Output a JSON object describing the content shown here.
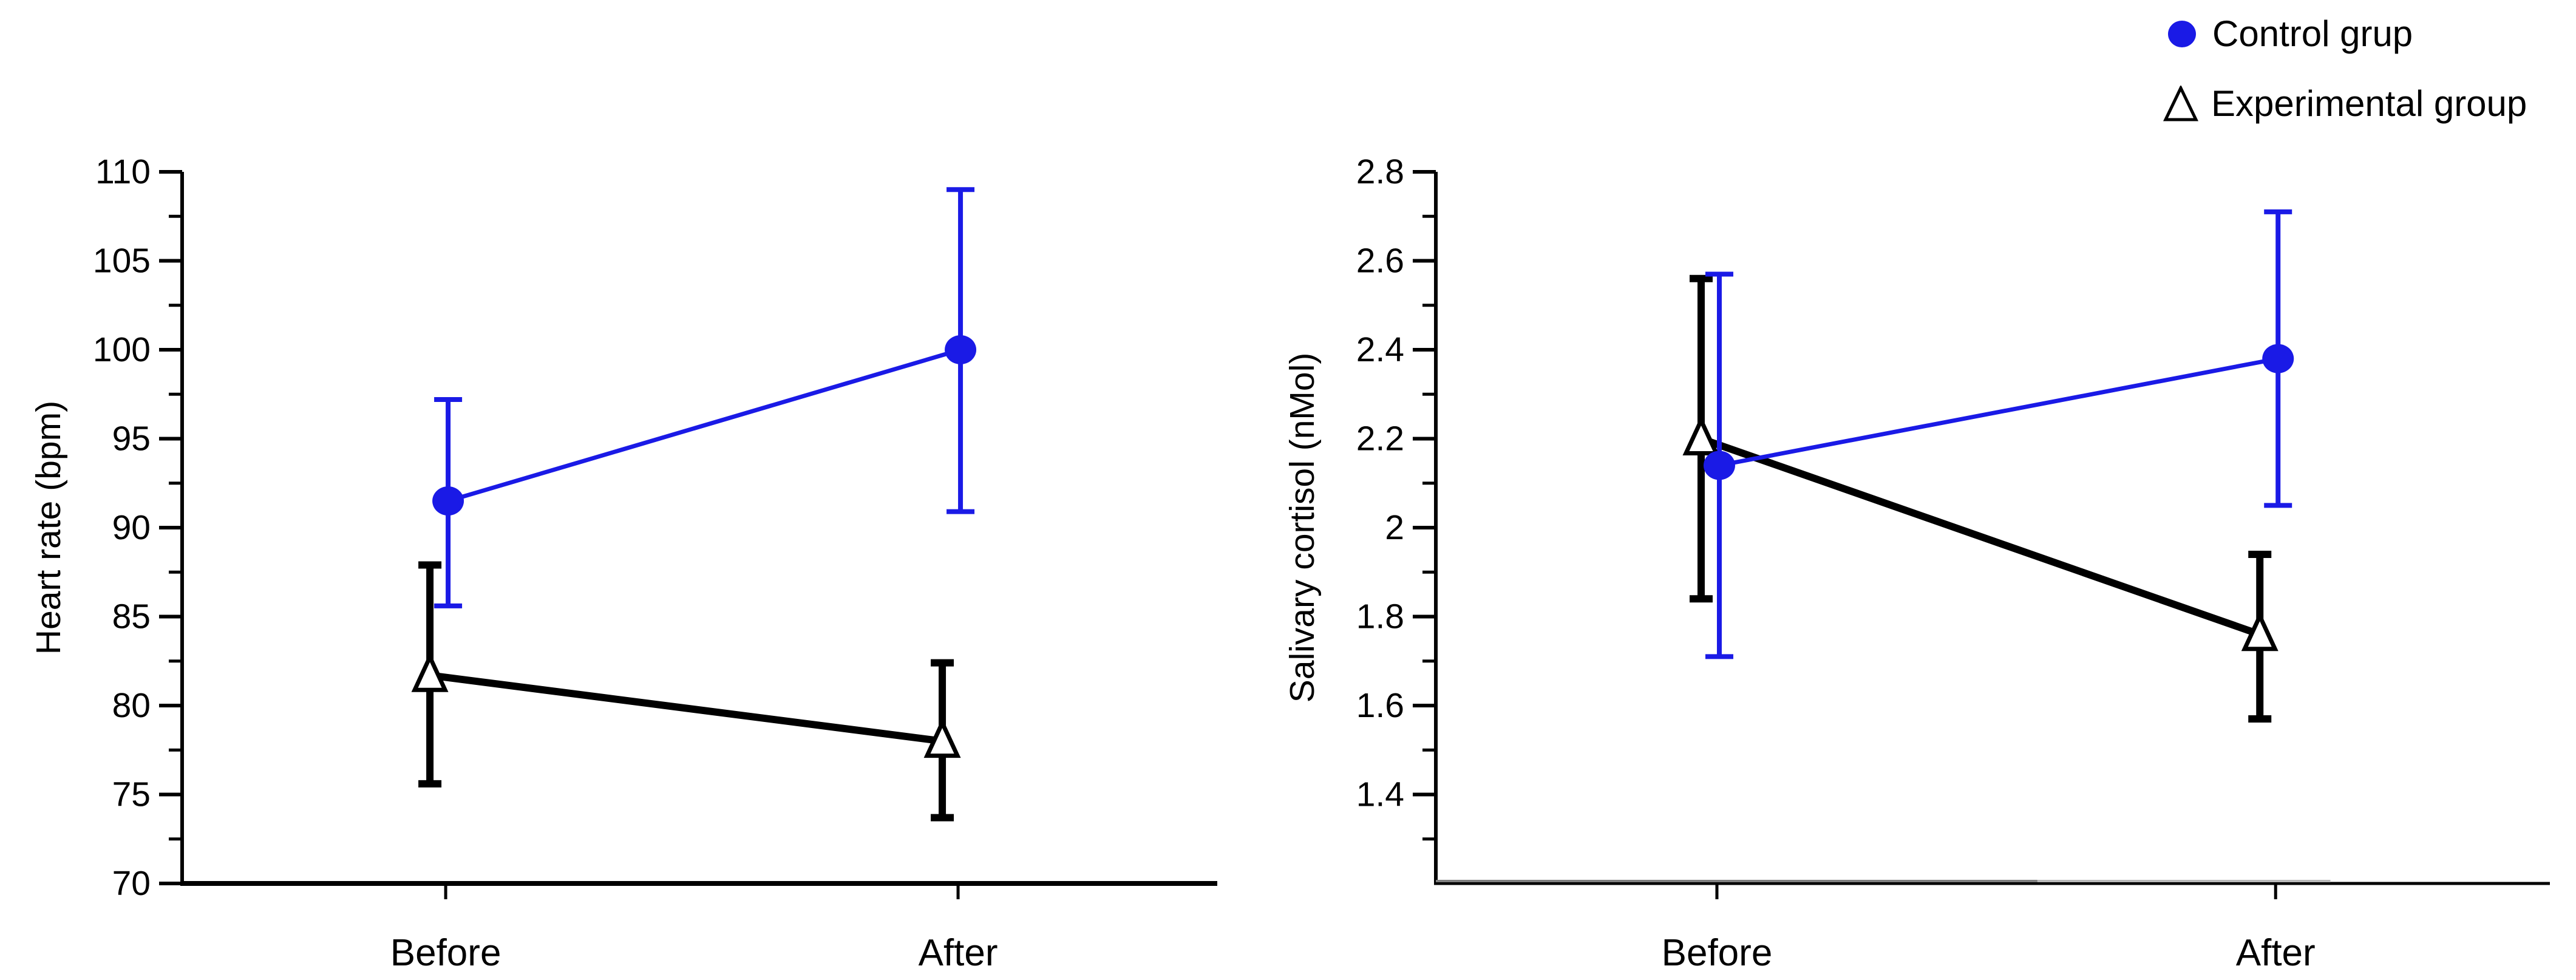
{
  "figure": {
    "background": "#ffffff",
    "accent_blue": "#1a1ae6",
    "axis_black": "#000000"
  },
  "legend": {
    "position": "top-right",
    "items": [
      {
        "label": "Control grup",
        "marker": "filled-circle-icon",
        "color": "#1a1ae6"
      },
      {
        "label": "Experimental group",
        "marker": "open-triangle-icon",
        "color": "#000000"
      }
    ]
  },
  "chart_data": [
    {
      "id": "heart-rate",
      "type": "line",
      "title": "",
      "xlabel": "",
      "ylabel": "Heart rate (bpm)",
      "categories": [
        "Before",
        "After"
      ],
      "grid": false,
      "legend_position": "figure-top-right",
      "yaxis": {
        "axis_min": 70,
        "axis_max": 110,
        "major_step": 5,
        "minor_step": 2.5,
        "tick_values": [
          70,
          75,
          80,
          85,
          90,
          95,
          100,
          105,
          110
        ],
        "tick_labels": [
          "70",
          "75",
          "80",
          "85",
          "90",
          "95",
          "100",
          "105",
          "110"
        ],
        "minor_tick_values": [
          72.5,
          77.5,
          82.5,
          87.5,
          92.5,
          97.5,
          102.5,
          107.5
        ]
      },
      "x_axis_color": "#000000",
      "x_axis_overlay_segments": [],
      "series": [
        {
          "id": "control",
          "name": "Control grup",
          "marker": "circle",
          "color": "#1a1ae6",
          "values": [
            91.5,
            100.0
          ],
          "err_low": [
            85.6,
            90.9
          ],
          "err_high": [
            97.2,
            109.0
          ]
        },
        {
          "id": "experimental",
          "name": "Experimental group",
          "marker": "triangle",
          "color": "#000000",
          "values": [
            81.7,
            78.0
          ],
          "err_low": [
            75.6,
            73.7
          ],
          "err_high": [
            87.9,
            82.4
          ]
        }
      ]
    },
    {
      "id": "salivary-cortisol",
      "type": "line",
      "title": "",
      "xlabel": "",
      "ylabel": "Salivary cortisol (nMol)",
      "categories": [
        "Before",
        "After"
      ],
      "grid": false,
      "legend_position": "figure-top-right",
      "yaxis": {
        "axis_min": 1.2,
        "axis_max": 2.8,
        "major_step": 0.2,
        "minor_step": 0.1,
        "tick_values": [
          1.4,
          1.6,
          1.8,
          2,
          2.2,
          2.4,
          2.6,
          2.8
        ],
        "tick_labels": [
          "1.4",
          "1.6",
          "1.8",
          "2",
          "2.2",
          "2.4",
          "2.6",
          "2.8"
        ],
        "minor_tick_values": [
          1.3,
          1.5,
          1.7,
          1.9,
          2.1,
          2.3,
          2.5,
          2.7
        ]
      },
      "x_axis_color": "#000000",
      "x_axis_overlay_segments": [
        {
          "start_frac": 0.0,
          "end_frac": 0.54,
          "color": "#7f7f7f"
        },
        {
          "start_frac": 0.54,
          "end_frac": 0.803,
          "color": "#b9b9b9"
        }
      ],
      "series": [
        {
          "id": "control",
          "name": "Control grup",
          "marker": "circle",
          "color": "#1a1ae6",
          "values": [
            2.14,
            2.38
          ],
          "err_low": [
            1.71,
            2.05
          ],
          "err_high": [
            2.57,
            2.71
          ]
        },
        {
          "id": "experimental",
          "name": "Experimental group",
          "marker": "triangle",
          "color": "#000000",
          "values": [
            2.2,
            1.76
          ],
          "err_low": [
            1.84,
            1.57
          ],
          "err_high": [
            2.56,
            1.94
          ]
        }
      ]
    }
  ]
}
